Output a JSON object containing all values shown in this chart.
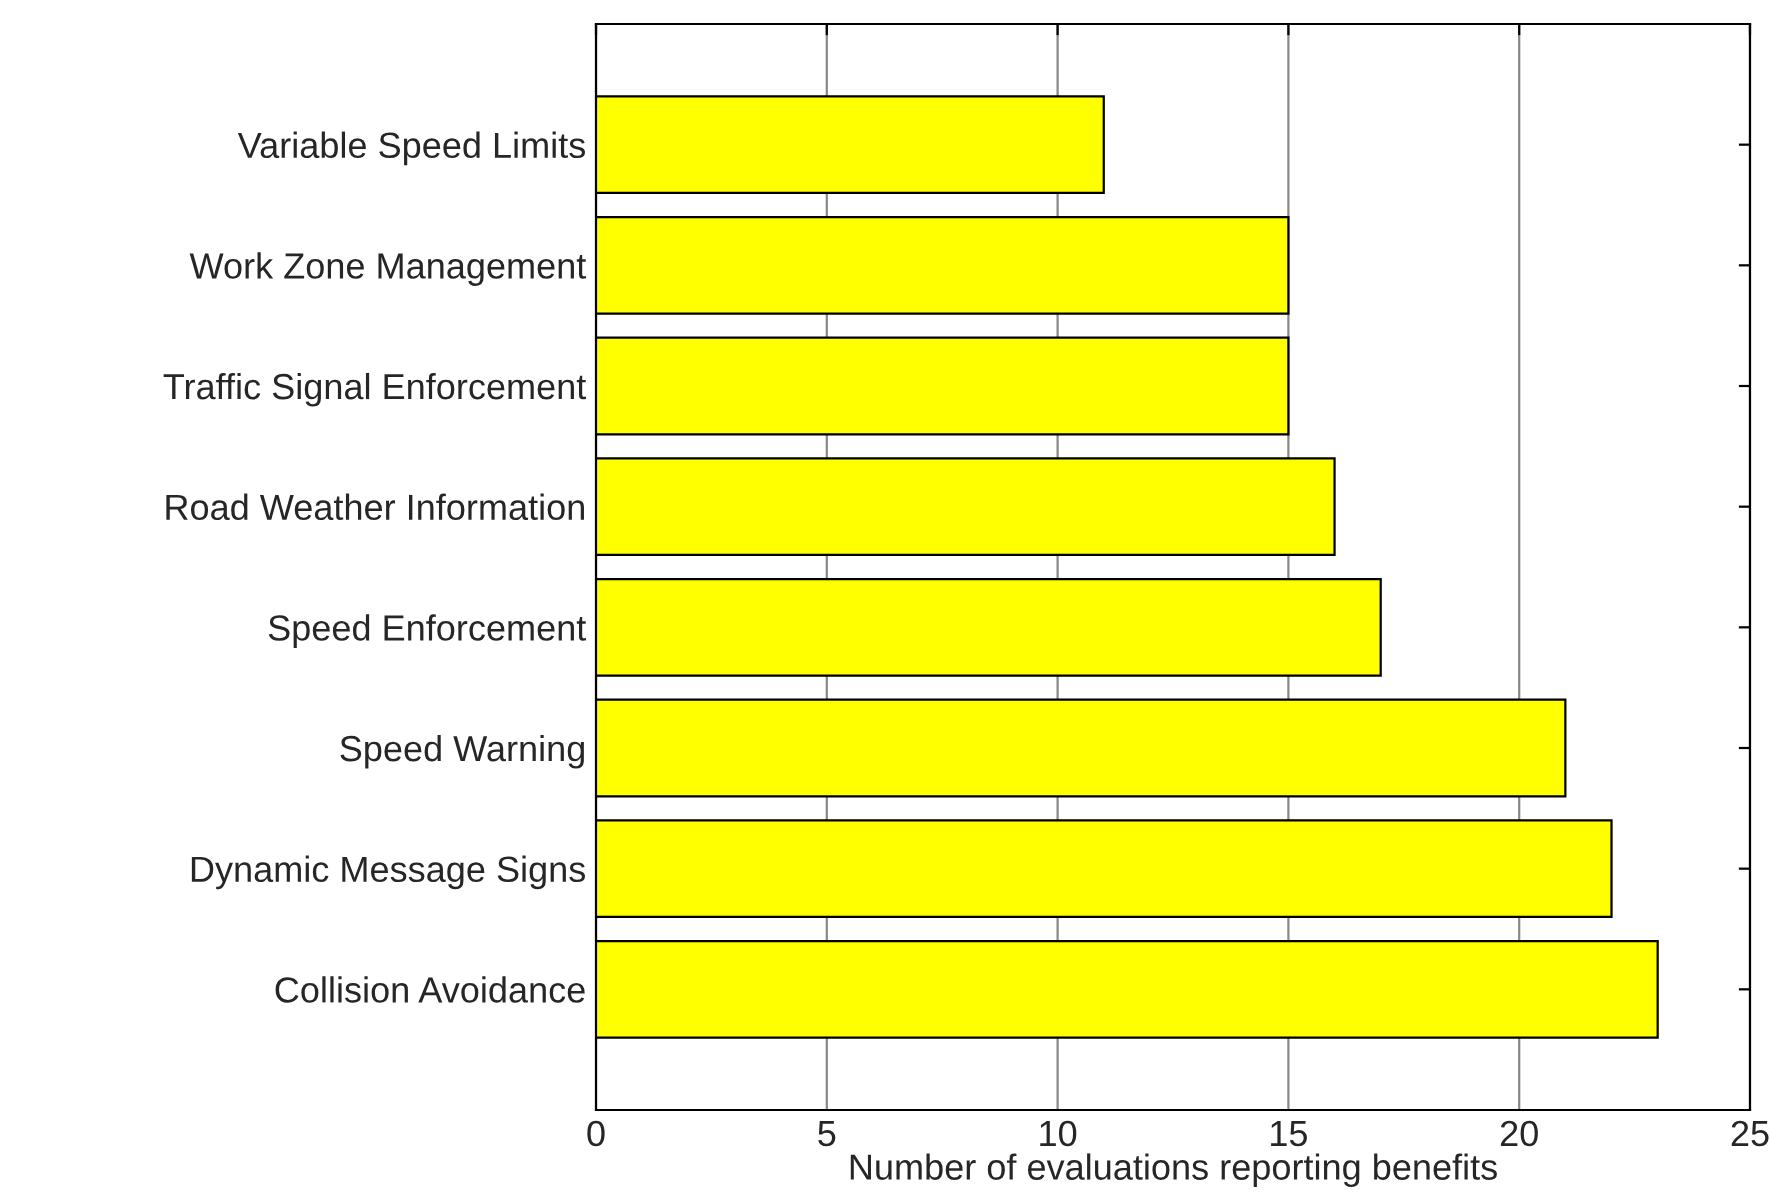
{
  "chart_data": {
    "type": "bar",
    "orientation": "horizontal",
    "categories": [
      "Variable Speed Limits",
      "Work Zone Management",
      "Traffic Signal Enforcement",
      "Road Weather Information",
      "Speed Enforcement",
      "Speed Warning",
      "Dynamic Message Signs",
      "Collision Avoidance"
    ],
    "values": [
      11,
      15,
      15,
      16,
      17,
      21,
      22,
      23
    ],
    "color": "#ffff00",
    "xlabel": "Number of evaluations reporting benefits",
    "xlim": [
      0,
      25
    ],
    "xticks": [
      0,
      5,
      10,
      15,
      20,
      25
    ],
    "grid": "x"
  }
}
